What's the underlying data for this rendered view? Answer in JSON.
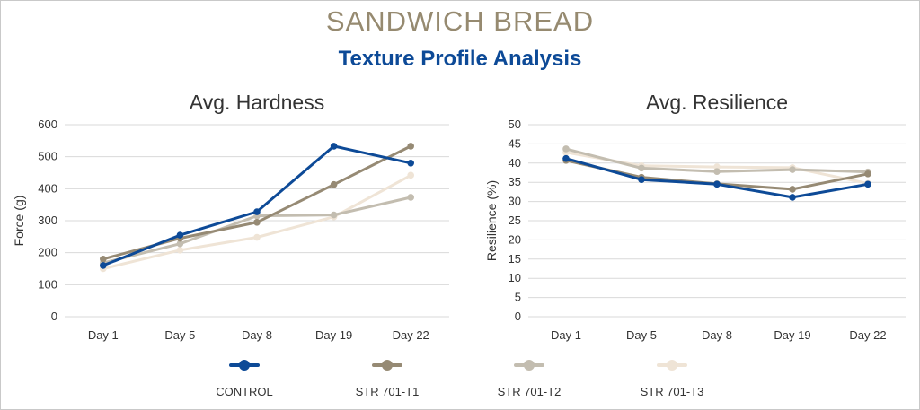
{
  "header": {
    "title": "SANDWICH BREAD",
    "subtitle": "Texture Profile Analysis"
  },
  "legend": [
    "CONTROL",
    "STR 701-T1",
    "STR 701-T2",
    "STR 701-T3"
  ],
  "chart_data": [
    {
      "type": "line",
      "title": "Avg. Hardness",
      "xlabel": "",
      "ylabel": "Force (g)",
      "ylim": [
        0,
        600
      ],
      "yticks": [
        0,
        100,
        200,
        300,
        400,
        500,
        600
      ],
      "grid": true,
      "categories": [
        "Day 1",
        "Day 5",
        "Day 8",
        "Day 19",
        "Day 22"
      ],
      "series": [
        {
          "name": "CONTROL",
          "color": "#0d4a97",
          "values": [
            160,
            255,
            328,
            533,
            480
          ]
        },
        {
          "name": "STR 701-T1",
          "color": "#968a74",
          "values": [
            180,
            245,
            295,
            413,
            533
          ]
        },
        {
          "name": "STR 701-T2",
          "color": "#c3bdb0",
          "values": [
            168,
            228,
            315,
            318,
            373
          ]
        },
        {
          "name": "STR 701-T3",
          "color": "#efe4d6",
          "values": [
            150,
            208,
            248,
            312,
            442
          ]
        }
      ]
    },
    {
      "type": "line",
      "title": "Avg. Resilience",
      "xlabel": "",
      "ylabel": "Resilience (%)",
      "ylim": [
        0,
        50
      ],
      "yticks": [
        0,
        5,
        10,
        15,
        20,
        25,
        30,
        35,
        40,
        45,
        50
      ],
      "grid": true,
      "categories": [
        "Day 1",
        "Day 5",
        "Day 8",
        "Day 19",
        "Day 22"
      ],
      "series": [
        {
          "name": "CONTROL",
          "color": "#0d4a97",
          "values": [
            41.2,
            35.7,
            34.5,
            31.1,
            34.5
          ]
        },
        {
          "name": "STR 701-T1",
          "color": "#968a74",
          "values": [
            40.7,
            36.3,
            34.6,
            33.2,
            37.2
          ]
        },
        {
          "name": "STR 701-T2",
          "color": "#c3bdb0",
          "values": [
            43.7,
            38.7,
            37.8,
            38.3,
            37.7
          ]
        },
        {
          "name": "STR 701-T3",
          "color": "#efe4d6",
          "values": [
            42.8,
            39.3,
            39.0,
            38.8,
            34.7
          ]
        }
      ]
    }
  ]
}
